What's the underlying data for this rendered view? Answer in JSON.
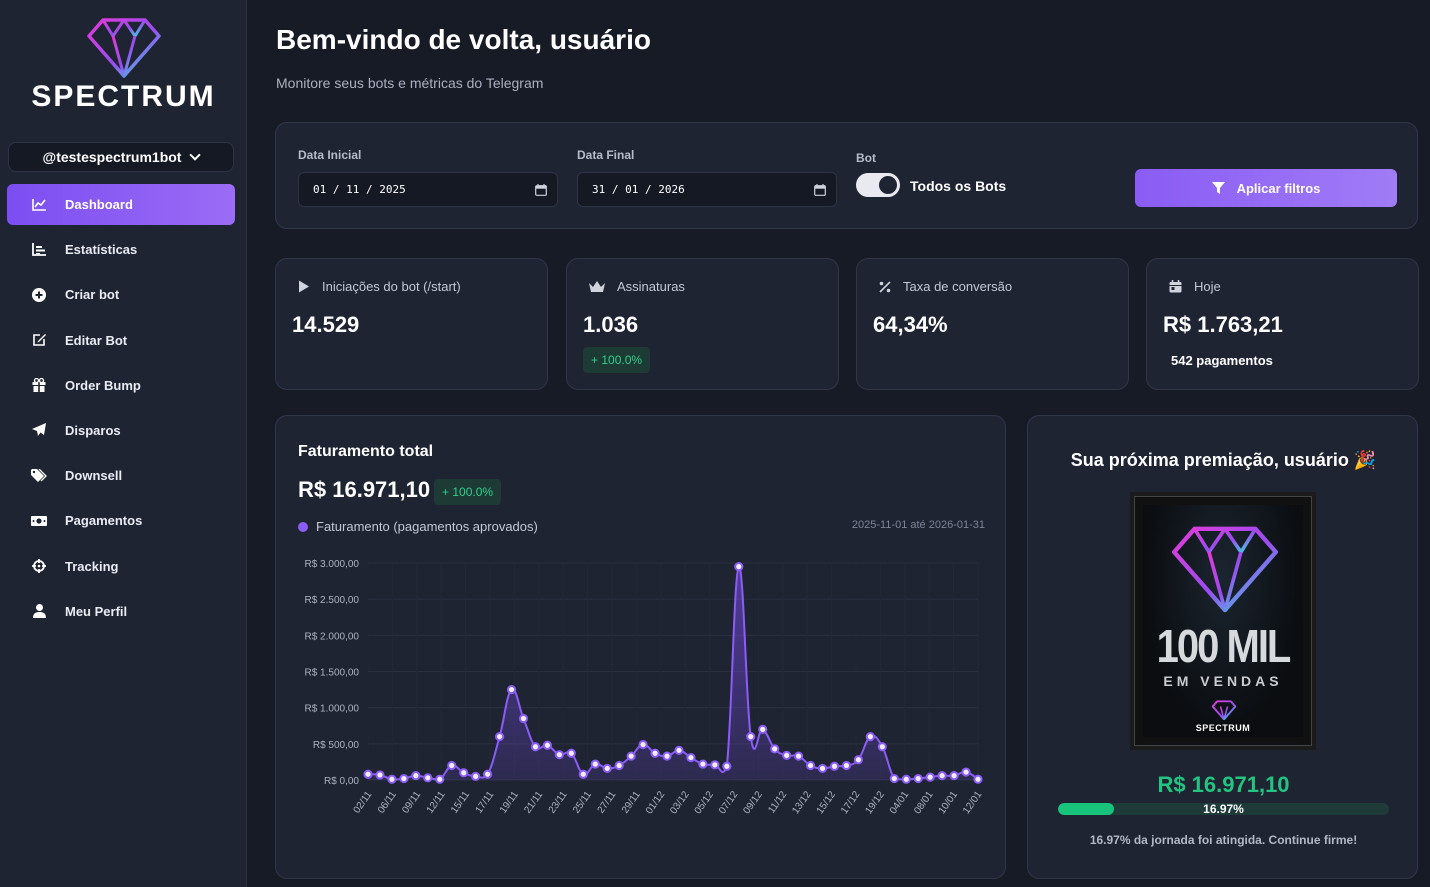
{
  "brand": {
    "name": "SPECTRUM"
  },
  "sidebar": {
    "bot_selector": "@testespectrum1bot",
    "items": [
      {
        "label": "Dashboard",
        "icon": "chart-line-icon",
        "active": true
      },
      {
        "label": "Estatísticas",
        "icon": "bar-chart-icon"
      },
      {
        "label": "Criar bot",
        "icon": "plus-circle-icon"
      },
      {
        "label": "Editar Bot",
        "icon": "edit-icon"
      },
      {
        "label": "Order Bump",
        "icon": "gift-icon"
      },
      {
        "label": "Disparos",
        "icon": "paper-plane-icon"
      },
      {
        "label": "Downsell",
        "icon": "tags-icon"
      },
      {
        "label": "Pagamentos",
        "icon": "money-bill-icon"
      },
      {
        "label": "Tracking",
        "icon": "crosshairs-icon"
      },
      {
        "label": "Meu Perfil",
        "icon": "user-icon"
      }
    ]
  },
  "header": {
    "title": "Bem-vindo de volta, usuário",
    "subtitle": "Monitore seus bots e métricas do Telegram"
  },
  "filters": {
    "start_label": "Data Inicial",
    "start_value": "01 / 11 / 2025",
    "end_label": "Data Final",
    "end_value": "31 / 01 / 2026",
    "bot_label": "Bot",
    "toggle_label": "Todos os Bots",
    "apply_label": "Aplicar filtros"
  },
  "stats": {
    "starts": {
      "label": "Iniciações do bot (/start)",
      "value": "14.529"
    },
    "subs": {
      "label": "Assinaturas",
      "value": "1.036",
      "badge": "+ 100.0%"
    },
    "conversion": {
      "label": "Taxa de conversão",
      "value": "64,34%"
    },
    "today": {
      "label": "Hoje",
      "value": "R$ 1.763,21",
      "note": "542 pagamentos"
    }
  },
  "revenue": {
    "title": "Faturamento total",
    "value": "R$ 16.971,10",
    "badge": "+ 100.0%",
    "legend": "Faturamento (pagamentos aprovados)",
    "range": "2025-11-01 até 2026-01-31"
  },
  "chart_data": {
    "type": "area",
    "title": "Faturamento total",
    "series_name": "Faturamento (pagamentos aprovados)",
    "color": "#8b5cf6",
    "ylim": [
      0,
      3000
    ],
    "y_ticks": [
      0,
      500,
      1000,
      1500,
      2000,
      2500,
      3000
    ],
    "y_tick_labels": [
      "R$ 0,00",
      "R$ 500,00",
      "R$ 1.000,00",
      "R$ 1.500,00",
      "R$ 2.000,00",
      "R$ 2.500,00",
      "R$ 3.000,00"
    ],
    "x_tick_labels": [
      "02/11",
      "06/11",
      "09/11",
      "12/11",
      "15/11",
      "17/11",
      "19/11",
      "21/11",
      "23/11",
      "25/11",
      "27/11",
      "29/11",
      "01/12",
      "03/12",
      "05/12",
      "07/12",
      "09/12",
      "11/12",
      "13/12",
      "15/12",
      "17/12",
      "19/12",
      "04/01",
      "08/01",
      "10/01",
      "12/01"
    ],
    "values": [
      80,
      70,
      10,
      20,
      60,
      30,
      10,
      200,
      100,
      50,
      80,
      600,
      1250,
      850,
      460,
      480,
      350,
      370,
      80,
      220,
      160,
      200,
      330,
      490,
      370,
      330,
      410,
      310,
      220,
      210,
      190,
      2950,
      600,
      700,
      430,
      340,
      330,
      200,
      160,
      190,
      200,
      280,
      600,
      460,
      20,
      10,
      20,
      40,
      60,
      60,
      110,
      10
    ]
  },
  "award": {
    "title": "Sua próxima premiação, usuário 🎉",
    "plaque_big": "100 MIL",
    "plaque_sub": "EM VENDAS",
    "plaque_brand": "SPECTRUM",
    "amount": "R$ 16.971,10",
    "progress_label": "16.97%",
    "progress_fraction": 0.1697,
    "note": "16.97% da jornada foi atingida. Continue firme!"
  }
}
